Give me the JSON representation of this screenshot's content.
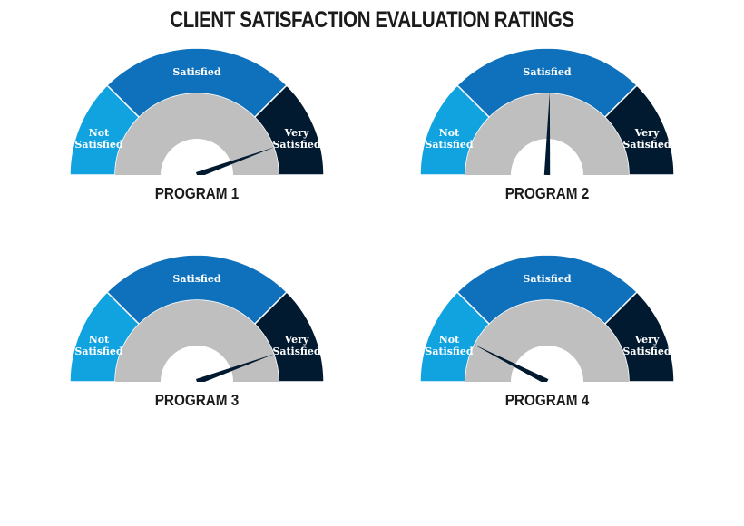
{
  "chart_data": {
    "type": "gauge",
    "title": "CLIENT SATISFACTION EVALUATION RATINGS",
    "colors": {
      "not_satisfied": "#10a3e0",
      "satisfied": "#0f71bb",
      "very_satisfied": "#021a30",
      "inner_ring": "#bfbfbf",
      "needle": "#021a30"
    },
    "segments": [
      {
        "key": "not_satisfied",
        "lines": [
          "Not",
          "Satisfied"
        ],
        "from": 0,
        "to": 0.25
      },
      {
        "key": "satisfied",
        "lines": [
          "Satisfied"
        ],
        "from": 0.25,
        "to": 0.75
      },
      {
        "key": "very_satisfied",
        "lines": [
          "Very",
          "Satisfied"
        ],
        "from": 0.75,
        "to": 1.0
      }
    ],
    "gauges": [
      {
        "label": "PROGRAM 1",
        "value": 0.89
      },
      {
        "label": "PROGRAM 2",
        "value": 0.51
      },
      {
        "label": "PROGRAM 3",
        "value": 0.89
      },
      {
        "label": "PROGRAM 4",
        "value": 0.15
      }
    ]
  }
}
